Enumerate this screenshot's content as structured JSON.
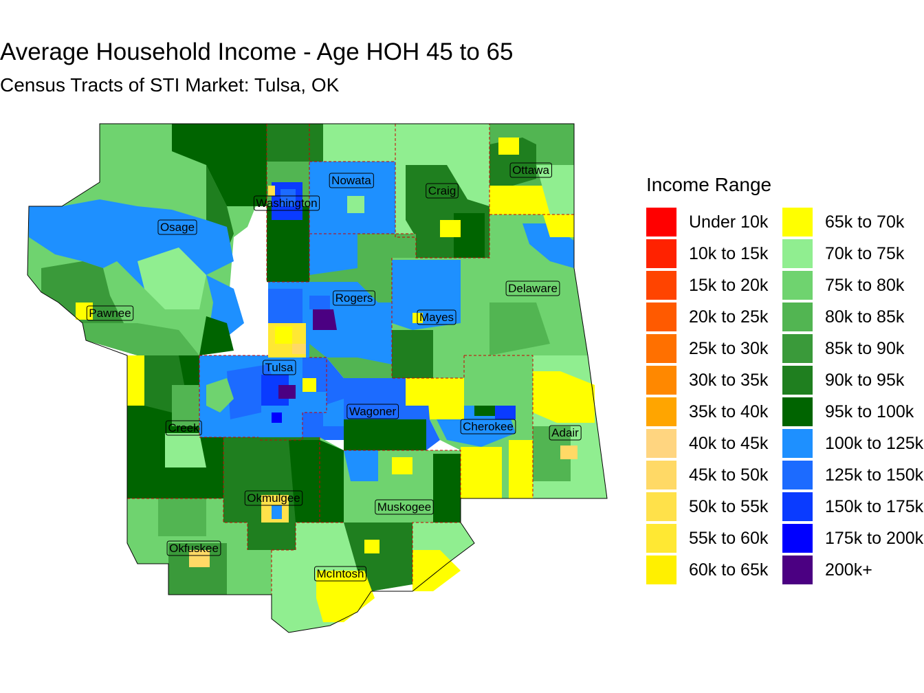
{
  "title": "Average Household Income - Age HOH 45 to 65",
  "subtitle": "Census Tracts of STI Market: Tulsa, OK",
  "legend": {
    "title": "Income Range",
    "items": [
      {
        "label": "Under 10k",
        "color": "#FF0000"
      },
      {
        "label": "10k to 15k",
        "color": "#FF2200"
      },
      {
        "label": "15k to 20k",
        "color": "#FF4400"
      },
      {
        "label": "20k to 25k",
        "color": "#FF5A00"
      },
      {
        "label": "25k to 30k",
        "color": "#FF7000"
      },
      {
        "label": "30k to 35k",
        "color": "#FF8800"
      },
      {
        "label": "35k to 40k",
        "color": "#FFA500"
      },
      {
        "label": "40k to 45k",
        "color": "#FFD580"
      },
      {
        "label": "45k to 50k",
        "color": "#FFD966"
      },
      {
        "label": "50k to 55k",
        "color": "#FFE14A"
      },
      {
        "label": "55k to 60k",
        "color": "#FFE833"
      },
      {
        "label": "60k to 65k",
        "color": "#FFF000"
      },
      {
        "label": "65k to 70k",
        "color": "#FFFF00"
      },
      {
        "label": "70k to 75k",
        "color": "#90EE90"
      },
      {
        "label": "75k to 80k",
        "color": "#6FD36F"
      },
      {
        "label": "80k to 85k",
        "color": "#52B552"
      },
      {
        "label": "85k to 90k",
        "color": "#3A9A3A"
      },
      {
        "label": "90k to 95k",
        "color": "#1F7F1F"
      },
      {
        "label": "95k to 100k",
        "color": "#006400"
      },
      {
        "label": "100k to 125k",
        "color": "#1E90FF"
      },
      {
        "label": "125k to 150k",
        "color": "#1C6BFF"
      },
      {
        "label": "150k to 175k",
        "color": "#0A3BFF"
      },
      {
        "label": "175k to 200k",
        "color": "#0000FF"
      },
      {
        "label": "200k+",
        "color": "#4B0082"
      }
    ]
  },
  "counties": [
    "Osage",
    "Washington",
    "Nowata",
    "Craig",
    "Ottawa",
    "Pawnee",
    "Rogers",
    "Mayes",
    "Delaware",
    "Tulsa",
    "Creek",
    "Wagoner",
    "Cherokee",
    "Adair",
    "Okmulgee",
    "Muskogee",
    "Okfuskee",
    "McIntosh"
  ]
}
